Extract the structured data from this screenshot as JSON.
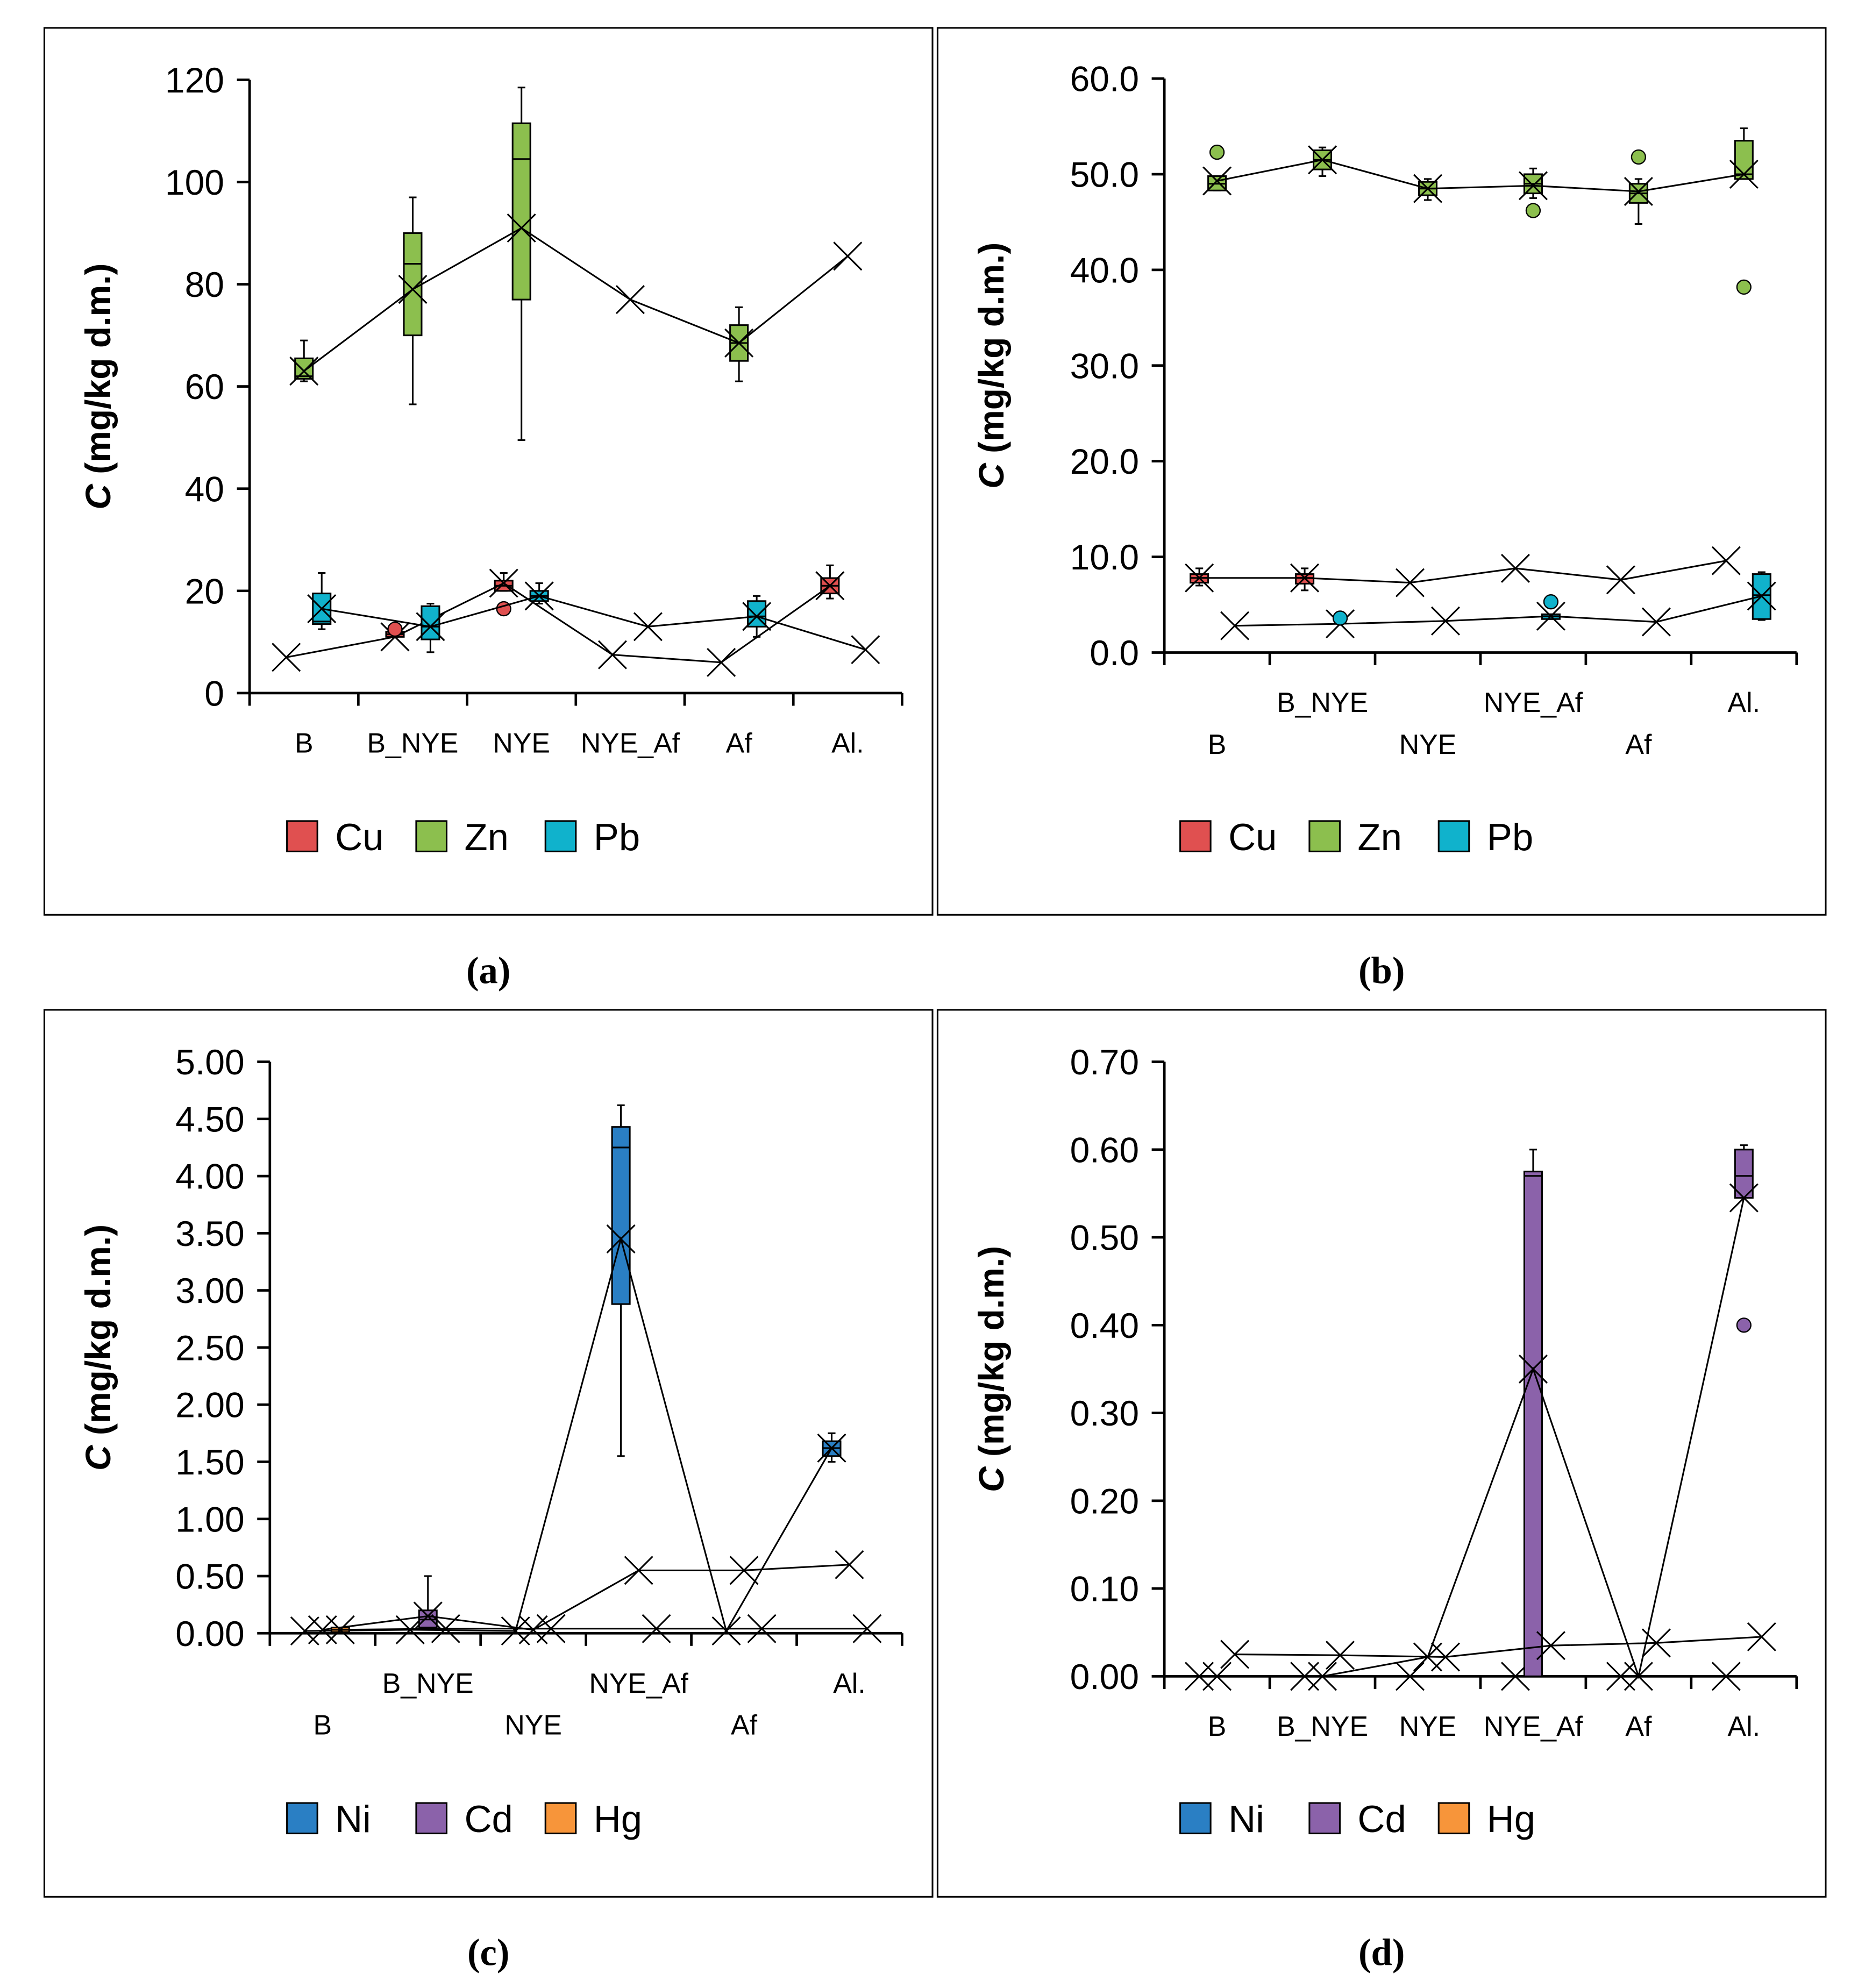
{
  "chart_data": [
    {
      "type": "box",
      "caption": "(a)",
      "ylabel_var": "C",
      "ylabel_unit": "(mg/kg d.m.)",
      "ylim": [
        0,
        120
      ],
      "yticks": [
        "0",
        "20",
        "40",
        "60",
        "80",
        "100",
        "120"
      ],
      "categories": [
        "B",
        "B_NYE",
        "NYE",
        "NYE_Af",
        "Af",
        "Al."
      ],
      "series": [
        {
          "name": "Cu",
          "color": "#e05050",
          "means": [
            7,
            11,
            21.5,
            7.5,
            6,
            21
          ],
          "boxes": [
            null,
            {
              "q1": 11,
              "med": 11.5,
              "q3": 12,
              "lo": 11,
              "hi": 12
            },
            {
              "q1": 20,
              "med": 21,
              "q3": 22,
              "lo": 20,
              "hi": 23.5
            },
            null,
            null,
            {
              "q1": 19.5,
              "med": 21,
              "q3": 22.5,
              "lo": 18.5,
              "hi": 25
            }
          ],
          "outliers": [
            [
              1,
              12.5
            ],
            [
              2,
              16.5
            ]
          ]
        },
        {
          "name": "Zn",
          "color": "#8cbf4e",
          "means": [
            63,
            79,
            91,
            77,
            68.5,
            85.5
          ],
          "boxes": [
            {
              "q1": 61.5,
              "med": 62,
              "q3": 65.5,
              "lo": 61,
              "hi": 69
            },
            {
              "q1": 70,
              "med": 84,
              "q3": 90,
              "lo": 56.5,
              "hi": 97
            },
            {
              "q1": 77,
              "med": 104.5,
              "q3": 111.5,
              "lo": 49.5,
              "hi": 118.5
            },
            null,
            {
              "q1": 65,
              "med": 68.5,
              "q3": 72,
              "lo": 61,
              "hi": 75.5
            },
            null
          ],
          "outliers": []
        },
        {
          "name": "Pb",
          "color": "#10b2cc",
          "means": [
            16.5,
            13,
            19,
            13,
            15,
            8.5
          ],
          "boxes": [
            {
              "q1": 13.5,
              "med": 14,
              "q3": 19.5,
              "lo": 12.5,
              "hi": 23.5
            },
            {
              "q1": 10.5,
              "med": 13,
              "q3": 17,
              "lo": 8,
              "hi": 17.5
            },
            {
              "q1": 18,
              "med": 19,
              "q3": 20,
              "lo": 17.5,
              "hi": 21.5
            },
            null,
            {
              "q1": 13,
              "med": 15,
              "q3": 18,
              "lo": 11,
              "hi": 19
            },
            null
          ],
          "outliers": []
        }
      ]
    },
    {
      "type": "box",
      "caption": "(b)",
      "ylabel_var": "C",
      "ylabel_unit": "(mg/kg d.m.)",
      "ylim": [
        0,
        60
      ],
      "yticks": [
        "0.0",
        "10.0",
        "20.0",
        "30.0",
        "40.0",
        "50.0",
        "60.0"
      ],
      "categories": [
        "B",
        "B_NYE",
        "NYE",
        "NYE_Af",
        "Af",
        "Al."
      ],
      "series": [
        {
          "name": "Cu",
          "color": "#e05050",
          "means": [
            7.8,
            7.8,
            7.3,
            8.8,
            7.6,
            9.6
          ],
          "boxes": [
            {
              "q1": 7.3,
              "med": 7.8,
              "q3": 8.2,
              "lo": 7.0,
              "hi": 8.8
            },
            {
              "q1": 7.2,
              "med": 7.8,
              "q3": 8.2,
              "lo": 6.5,
              "hi": 8.8
            },
            null,
            null,
            null,
            null
          ],
          "outliers": []
        },
        {
          "name": "Zn",
          "color": "#8cbf4e",
          "means": [
            49.3,
            51.5,
            48.5,
            48.8,
            48.2,
            50
          ],
          "boxes": [
            {
              "q1": 48.3,
              "med": 49,
              "q3": 49.8,
              "lo": 48.3,
              "hi": 49.8
            },
            {
              "q1": 50.5,
              "med": 51.5,
              "q3": 52.5,
              "lo": 49.8,
              "hi": 52.8
            },
            {
              "q1": 47.8,
              "med": 48.5,
              "q3": 49.2,
              "lo": 47.3,
              "hi": 49.5
            },
            {
              "q1": 48,
              "med": 49,
              "q3": 50,
              "lo": 47.5,
              "hi": 50.6
            },
            {
              "q1": 47,
              "med": 48,
              "q3": 49,
              "lo": 44.8,
              "hi": 49.5
            },
            {
              "q1": 49.5,
              "med": 50,
              "q3": 53.5,
              "lo": 49.5,
              "hi": 54.8
            }
          ],
          "outliers": [
            [
              0,
              52.3
            ],
            [
              3,
              46.2
            ],
            [
              4,
              51.8
            ],
            [
              5,
              38.2
            ]
          ]
        },
        {
          "name": "Pb",
          "color": "#10b2cc",
          "means": [
            2.8,
            3.0,
            3.3,
            3.8,
            3.2,
            5.9
          ],
          "boxes": [
            null,
            null,
            null,
            {
              "q1": 3.5,
              "med": 3.8,
              "q3": 4.0,
              "lo": 3.5,
              "hi": 4.0
            },
            null,
            {
              "q1": 3.5,
              "med": 6,
              "q3": 8.2,
              "lo": 3.4,
              "hi": 8.4
            }
          ],
          "outliers": [
            [
              1,
              3.6
            ],
            [
              3,
              5.3
            ]
          ]
        }
      ]
    },
    {
      "type": "box",
      "caption": "(c)",
      "ylabel_var": "C",
      "ylabel_unit": "(mg/kg d.m.)",
      "ylim": [
        0,
        5
      ],
      "yticks": [
        "0.00",
        "0.50",
        "1.00",
        "1.50",
        "2.00",
        "2.50",
        "3.00",
        "3.50",
        "4.00",
        "4.50",
        "5.00"
      ],
      "categories": [
        "B",
        "B_NYE",
        "NYE",
        "NYE_Af",
        "Af",
        "Al."
      ],
      "series": [
        {
          "name": "Ni",
          "color": "#2a7fc4",
          "means": [
            0.02,
            0.03,
            0.02,
            3.45,
            0.02,
            1.62
          ],
          "boxes": [
            null,
            null,
            null,
            {
              "q1": 2.88,
              "med": 4.25,
              "q3": 4.43,
              "lo": 1.55,
              "hi": 4.62
            },
            null,
            {
              "q1": 1.55,
              "med": 1.62,
              "q3": 1.68,
              "lo": 1.5,
              "hi": 1.75
            }
          ],
          "outliers": []
        },
        {
          "name": "Cd",
          "color": "#8b62aa",
          "means": [
            0.03,
            0.15,
            0.03,
            0.55,
            0.55,
            0.6
          ],
          "boxes": [
            null,
            {
              "q1": 0.05,
              "med": 0.12,
              "q3": 0.2,
              "lo": 0.03,
              "hi": 0.5
            },
            null,
            null,
            null,
            null
          ],
          "outliers": []
        },
        {
          "name": "Hg",
          "color": "#f7953a",
          "means": [
            0.03,
            0.04,
            0.04,
            0.04,
            0.04,
            0.04
          ],
          "boxes": [
            {
              "q1": 0.01,
              "med": 0.03,
              "q3": 0.05,
              "lo": 0.01,
              "hi": 0.05
            },
            null,
            null,
            null,
            null,
            null
          ],
          "outliers": []
        }
      ]
    },
    {
      "type": "box",
      "caption": "(d)",
      "ylabel_var": "C",
      "ylabel_unit": "(mg/kg d.m.)",
      "ylim": [
        0,
        0.7
      ],
      "yticks": [
        "0.00",
        "0.10",
        "0.20",
        "0.30",
        "0.40",
        "0.50",
        "0.60",
        "0.70"
      ],
      "categories": [
        "B",
        "B_NYE",
        "NYE",
        "NYE_Af",
        "Af",
        "Al."
      ],
      "series": [
        {
          "name": "Ni",
          "color": "#2a7fc4",
          "means": [
            0.0,
            0.0,
            0.0,
            0.0,
            0.0,
            0.0
          ],
          "boxes": [
            null,
            null,
            null,
            null,
            null,
            null
          ],
          "outliers": []
        },
        {
          "name": "Cd",
          "color": "#8b62aa",
          "means": [
            0.0,
            0.0,
            0.022,
            0.35,
            0.0,
            0.545
          ],
          "boxes": [
            null,
            null,
            null,
            {
              "q1": 0.0,
              "med": 0.57,
              "q3": 0.575,
              "lo": 0.0,
              "hi": 0.6
            },
            null,
            {
              "q1": 0.545,
              "med": 0.57,
              "q3": 0.6,
              "lo": 0.545,
              "hi": 0.605
            }
          ],
          "outliers": [
            [
              5,
              0.4
            ]
          ]
        },
        {
          "name": "Hg",
          "color": "#f7953a",
          "means": [
            0.025,
            0.024,
            0.022,
            0.035,
            0.038,
            0.045
          ],
          "boxes": [
            null,
            null,
            null,
            null,
            null,
            null
          ],
          "outliers": []
        }
      ]
    }
  ]
}
